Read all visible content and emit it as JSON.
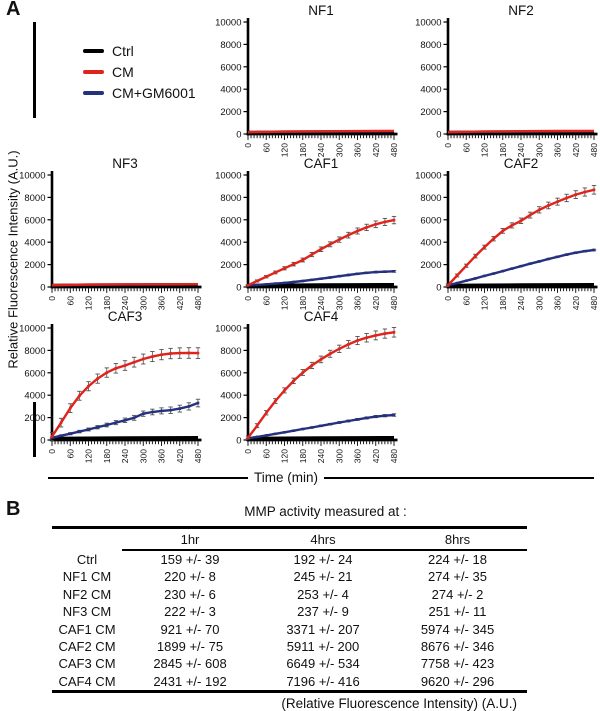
{
  "panelA": {
    "label": "A",
    "y_axis_label": "Relative Fluorescence Intensity (A.U.)",
    "x_axis_label": "Time (min)",
    "legend": [
      {
        "label": "Ctrl",
        "color": "#000000"
      },
      {
        "label": "CM",
        "color": "#e0241c"
      },
      {
        "label": "CM+GM6001",
        "color": "#25317e"
      }
    ]
  },
  "chart_data": [
    {
      "type": "line",
      "title": "NF1",
      "xlim": [
        0,
        480
      ],
      "ylim": [
        0,
        10000
      ],
      "xticks": [
        0,
        60,
        120,
        180,
        240,
        300,
        360,
        420,
        480
      ],
      "yticks": [
        0,
        2000,
        4000,
        6000,
        8000,
        10000
      ],
      "series": [
        {
          "name": "Ctrl",
          "color": "#000000",
          "width": 3,
          "values": [
            155,
            175,
            190,
            205,
            224
          ]
        },
        {
          "name": "CM+GM6001",
          "color": "#25317e",
          "values": [
            150,
            200,
            220,
            235,
            250
          ]
        },
        {
          "name": "CM",
          "color": "#e0241c",
          "values": [
            160,
            225,
            245,
            260,
            274
          ]
        }
      ]
    },
    {
      "type": "line",
      "title": "NF2",
      "xlim": [
        0,
        480
      ],
      "ylim": [
        0,
        10000
      ],
      "xticks": [
        0,
        60,
        120,
        180,
        240,
        300,
        360,
        420,
        480
      ],
      "yticks": [
        0,
        2000,
        4000,
        6000,
        8000,
        10000
      ],
      "series": [
        {
          "name": "Ctrl",
          "color": "#000000",
          "width": 3,
          "values": [
            155,
            175,
            190,
            205,
            224
          ]
        },
        {
          "name": "CM+GM6001",
          "color": "#25317e",
          "values": [
            150,
            195,
            215,
            230,
            245
          ]
        },
        {
          "name": "CM",
          "color": "#e0241c",
          "values": [
            160,
            232,
            253,
            265,
            274
          ]
        }
      ]
    },
    {
      "type": "line",
      "title": "NF3",
      "xlim": [
        0,
        480
      ],
      "ylim": [
        0,
        10000
      ],
      "xticks": [
        0,
        60,
        120,
        180,
        240,
        300,
        360,
        420,
        480
      ],
      "yticks": [
        0,
        2000,
        4000,
        6000,
        8000,
        10000
      ],
      "series": [
        {
          "name": "Ctrl",
          "color": "#000000",
          "width": 3,
          "values": [
            155,
            175,
            190,
            205,
            224
          ]
        },
        {
          "name": "CM+GM6001",
          "color": "#25317e",
          "values": [
            150,
            190,
            210,
            225,
            240
          ]
        },
        {
          "name": "CM",
          "color": "#e0241c",
          "values": [
            160,
            224,
            237,
            245,
            251
          ]
        }
      ]
    },
    {
      "type": "line",
      "title": "CAF1",
      "xlim": [
        0,
        480
      ],
      "ylim": [
        0,
        10000
      ],
      "xticks": [
        0,
        60,
        120,
        180,
        240,
        300,
        360,
        420,
        480
      ],
      "yticks": [
        0,
        2000,
        4000,
        6000,
        8000,
        10000
      ],
      "series": [
        {
          "name": "Ctrl",
          "color": "#000000",
          "width": 3,
          "values": [
            155,
            180,
            195,
            210,
            224
          ]
        },
        {
          "name": "CM+GM6001",
          "color": "#25317e",
          "err": [
            15,
            80
          ],
          "values": [
            150,
            190,
            240,
            300,
            370,
            450,
            540,
            640,
            740,
            850,
            960,
            1070,
            1180,
            1270,
            1330,
            1365,
            1400
          ]
        },
        {
          "name": "CM",
          "color": "#e0241c",
          "err": [
            80,
            330
          ],
          "values": [
            150,
            540,
            921,
            1300,
            1670,
            2040,
            2410,
            2900,
            3371,
            3810,
            4230,
            4630,
            5000,
            5320,
            5600,
            5810,
            5974
          ]
        }
      ]
    },
    {
      "type": "line",
      "title": "CAF2",
      "xlim": [
        0,
        480
      ],
      "ylim": [
        0,
        10000
      ],
      "xticks": [
        0,
        60,
        120,
        180,
        240,
        300,
        360,
        420,
        480
      ],
      "yticks": [
        0,
        2000,
        4000,
        6000,
        8000,
        10000
      ],
      "series": [
        {
          "name": "Ctrl",
          "color": "#000000",
          "width": 3,
          "values": [
            155,
            180,
            195,
            210,
            224
          ]
        },
        {
          "name": "CM+GM6001",
          "color": "#25317e",
          "err": [
            10,
            70
          ],
          "values": [
            150,
            350,
            560,
            770,
            990,
            1200,
            1420,
            1640,
            1860,
            2080,
            2290,
            2500,
            2700,
            2890,
            3060,
            3200,
            3300
          ]
        },
        {
          "name": "CM",
          "color": "#e0241c",
          "err": [
            110,
            380
          ],
          "values": [
            150,
            1030,
            1899,
            2760,
            3560,
            4310,
            5010,
            5500,
            5911,
            6420,
            6890,
            7280,
            7620,
            7950,
            8250,
            8480,
            8676
          ]
        }
      ]
    },
    {
      "type": "line",
      "title": "CAF3",
      "xlim": [
        0,
        480
      ],
      "ylim": [
        0,
        10000
      ],
      "xticks": [
        0,
        60,
        120,
        180,
        240,
        300,
        360,
        420,
        480
      ],
      "yticks": [
        0,
        2000,
        4000,
        6000,
        8000,
        10000
      ],
      "series": [
        {
          "name": "Ctrl",
          "color": "#000000",
          "width": 3,
          "values": [
            155,
            180,
            195,
            210,
            224
          ]
        },
        {
          "name": "CM+GM6001",
          "color": "#25317e",
          "err": [
            60,
            340
          ],
          "values": [
            200,
            380,
            560,
            750,
            940,
            1140,
            1340,
            1550,
            1760,
            1980,
            2350,
            2500,
            2600,
            2660,
            2800,
            3000,
            3300
          ]
        },
        {
          "name": "CM",
          "color": "#e0241c",
          "err": [
            380,
            480
          ],
          "values": [
            300,
            1550,
            2845,
            3950,
            4800,
            5480,
            6020,
            6400,
            6649,
            6950,
            7230,
            7450,
            7620,
            7720,
            7760,
            7770,
            7758
          ]
        }
      ]
    },
    {
      "type": "line",
      "title": "CAF4",
      "xlim": [
        0,
        480
      ],
      "ylim": [
        0,
        10000
      ],
      "xticks": [
        0,
        60,
        120,
        180,
        240,
        300,
        360,
        420,
        480
      ],
      "yticks": [
        0,
        2000,
        4000,
        6000,
        8000,
        10000
      ],
      "series": [
        {
          "name": "Ctrl",
          "color": "#000000",
          "width": 3,
          "values": [
            155,
            180,
            195,
            210,
            224
          ]
        },
        {
          "name": "CM+GM6001",
          "color": "#25317e",
          "err": [
            10,
            110
          ],
          "values": [
            150,
            280,
            410,
            550,
            690,
            830,
            980,
            1120,
            1270,
            1410,
            1560,
            1700,
            1840,
            1970,
            2090,
            2170,
            2230
          ]
        },
        {
          "name": "CM",
          "color": "#e0241c",
          "err": [
            160,
            430
          ],
          "values": [
            200,
            1280,
            2431,
            3480,
            4430,
            5280,
            6030,
            6660,
            7196,
            7700,
            8140,
            8540,
            8880,
            9130,
            9340,
            9500,
            9620
          ]
        }
      ]
    }
  ],
  "panelB": {
    "label": "B",
    "table_title": "MMP activity measured at :",
    "columns": [
      "1hr",
      "4hrs",
      "8hrs"
    ],
    "rows": [
      {
        "name": "Ctrl",
        "values": [
          "159 +/- 39",
          "192 +/- 24",
          "224 +/- 18"
        ]
      },
      {
        "name": "NF1 CM",
        "values": [
          "220 +/- 8",
          "245 +/- 21",
          "274 +/- 35"
        ]
      },
      {
        "name": "NF2 CM",
        "values": [
          "230 +/- 6",
          "253 +/- 4",
          "274 +/- 2"
        ]
      },
      {
        "name": "NF3 CM",
        "values": [
          "222 +/- 3",
          "237 +/- 9",
          "251 +/- 11"
        ]
      },
      {
        "name": "CAF1 CM",
        "values": [
          "921 +/- 70",
          "3371 +/- 207",
          "5974 +/- 345"
        ]
      },
      {
        "name": "CAF2 CM",
        "values": [
          "1899 +/- 75",
          "5911 +/- 200",
          "8676 +/- 346"
        ]
      },
      {
        "name": "CAF3 CM",
        "values": [
          "2845 +/- 608",
          "6649 +/- 534",
          "7758 +/- 423"
        ]
      },
      {
        "name": "CAF4 CM",
        "values": [
          "2431 +/- 192",
          "7196 +/- 416",
          "9620 +/- 296"
        ]
      }
    ],
    "footer": "(Relative Fluorescence Intensity) (A.U.)"
  }
}
